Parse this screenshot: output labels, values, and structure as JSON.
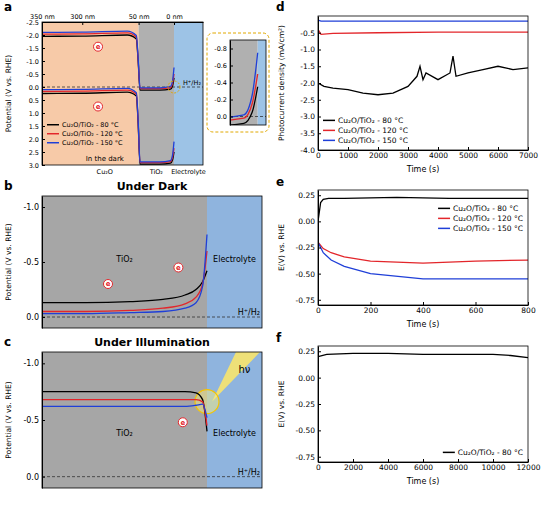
{
  "chart_data": [
    {
      "type": "line",
      "panel_label": "a",
      "y_label": "Potential (V vs. RHE)",
      "xlim": [
        350,
        -20
      ],
      "xticks": [
        {
          "value": 350,
          "label": "350 nm"
        },
        {
          "value": 300,
          "label": "300 nm"
        },
        {
          "value": 50,
          "label": "50 nm"
        },
        {
          "value": 0,
          "label": "0 nm"
        }
      ],
      "ylim": [
        3.0,
        -2.5
      ],
      "yticks": [
        -2.5,
        {
          "value": -2,
          "label": "-2.0"
        },
        -1.5,
        {
          "value": -1,
          "label": "-1.0"
        },
        -0.5,
        {
          "value": 0,
          "label": "0.0"
        },
        0.5,
        {
          "value": 1,
          "label": "1.0"
        },
        1.5,
        {
          "value": 2,
          "label": "2.0"
        },
        2.5,
        {
          "value": 3,
          "label": "3.0"
        }
      ],
      "x": [
        350,
        300,
        100,
        60,
        52,
        48,
        20,
        5,
        2,
        0
      ],
      "regions": [
        {
          "label": "Cu₂O",
          "from": 350,
          "to": 50,
          "color": "#f7caa8"
        },
        {
          "label": "TiO₂",
          "from": 50,
          "to": 0,
          "color": "#b0b0b0"
        },
        {
          "label": "Electrolyte",
          "from": 0,
          "to": -20,
          "color": "#9dc3e6"
        }
      ],
      "hlines": [
        {
          "y": 0,
          "label": "H⁺/H₂"
        }
      ],
      "annotations": [
        {
          "text": "e",
          "x": 230,
          "y": -1.55,
          "marker": "circle"
        },
        {
          "text": "e",
          "x": 230,
          "y": 0.75,
          "marker": "circle"
        },
        {
          "text": "In the dark",
          "x": 200,
          "y": 2.75
        }
      ],
      "legend": "lower left",
      "series": [
        {
          "name": "Cu₂O/TiO₂ - 80 °C",
          "color": "#000000",
          "values": [
            -1.95,
            -1.96,
            -2.0,
            -1.85,
            -1.0,
            0.12,
            0.12,
            0.08,
            -0.05,
            -0.35
          ],
          "values_vb": [
            0.25,
            0.24,
            0.2,
            0.35,
            1.4,
            2.97,
            2.97,
            2.93,
            2.8,
            2.5
          ]
        },
        {
          "name": "Cu₂O/TiO₂ - 120 °C",
          "color": "#e3262b",
          "values": [
            -2.03,
            -2.04,
            -2.08,
            -1.92,
            -1.05,
            0.06,
            0.06,
            0.02,
            -0.15,
            -0.5
          ],
          "values_vb": [
            0.17,
            0.16,
            0.12,
            0.28,
            1.35,
            2.91,
            2.91,
            2.87,
            2.7,
            2.35
          ]
        },
        {
          "name": "Cu₂O/TiO₂ - 150 °C",
          "color": "#1f3fd8",
          "values": [
            -2.1,
            -2.11,
            -2.15,
            -1.98,
            -1.1,
            0.03,
            0.03,
            -0.02,
            -0.25,
            -0.75
          ],
          "values_vb": [
            0.1,
            0.09,
            0.05,
            0.22,
            1.3,
            2.88,
            2.88,
            2.83,
            2.6,
            2.1
          ]
        }
      ],
      "inset": {
        "xlim": [
          10,
          -3
        ],
        "ylim": [
          0.1,
          -0.9
        ],
        "yticks": [
          -0.8,
          -0.6,
          -0.4,
          -0.2,
          {
            "value": 0,
            "label": "0.0"
          }
        ],
        "tick_labels": "y"
      }
    },
    {
      "type": "line",
      "panel_label": "b",
      "title": "Under Dark",
      "y_label": "Potential (V vs. RHE)",
      "tick_labels": "y",
      "xlim": [
        0,
        100
      ],
      "ylim": [
        0.1,
        -1.1
      ],
      "yticks": [
        {
          "value": -1,
          "label": "-1.0"
        },
        -0.5,
        {
          "value": 0,
          "label": "0.0"
        }
      ],
      "x": [
        0,
        20,
        40,
        55,
        65,
        70,
        73,
        75
      ],
      "regions": [
        {
          "label": "TiO₂",
          "from": 0,
          "to": 75,
          "color": "#a6a6a6"
        },
        {
          "label": "Electrolyte",
          "from": 75,
          "to": 100,
          "color": "#8fb4de"
        }
      ],
      "hlines": [
        {
          "y": 0,
          "label": "H⁺/H₂"
        }
      ],
      "annotations": [
        {
          "text": "e",
          "x": 30,
          "y": -0.3,
          "marker": "circle"
        },
        {
          "text": "e",
          "x": 62,
          "y": -0.45,
          "marker": "circle"
        }
      ],
      "series": [
        {
          "color": "#000000",
          "values": [
            -0.13,
            -0.13,
            -0.14,
            -0.16,
            -0.2,
            -0.25,
            -0.32,
            -0.42
          ]
        },
        {
          "color": "#e3262b",
          "values": [
            -0.05,
            -0.05,
            -0.06,
            -0.08,
            -0.12,
            -0.18,
            -0.3,
            -0.6
          ]
        },
        {
          "color": "#1f3fd8",
          "values": [
            -0.03,
            -0.03,
            -0.04,
            -0.05,
            -0.08,
            -0.13,
            -0.28,
            -0.75
          ]
        }
      ]
    },
    {
      "type": "line",
      "panel_label": "c",
      "title": "Under Illumination",
      "y_label": "Potential (V vs. RHE)",
      "tick_labels": "y",
      "xlim": [
        0,
        100
      ],
      "ylim": [
        0.1,
        -1.1
      ],
      "yticks": [
        {
          "value": -1,
          "label": "-1.0"
        },
        -0.5,
        {
          "value": 0,
          "label": "0.0"
        }
      ],
      "x": [
        0,
        20,
        40,
        55,
        65,
        70,
        73,
        75
      ],
      "regions": [
        {
          "label": "TiO₂",
          "from": 0,
          "to": 75,
          "color": "#a6a6a6"
        },
        {
          "label": "Electrolyte",
          "from": 75,
          "to": 100,
          "color": "#8fb4de"
        }
      ],
      "hlines": [
        {
          "y": 0,
          "label": "H⁺/H₂"
        }
      ],
      "annotations": [
        {
          "text": "e",
          "x": 64,
          "y": -0.48,
          "marker": "circle"
        },
        {
          "text": "hν",
          "x": 92,
          "y": -0.95
        }
      ],
      "series": [
        {
          "color": "#000000",
          "values": [
            -0.75,
            -0.75,
            -0.75,
            -0.75,
            -0.75,
            -0.74,
            -0.68,
            -0.4
          ]
        },
        {
          "color": "#e3262b",
          "values": [
            -0.68,
            -0.68,
            -0.68,
            -0.68,
            -0.68,
            -0.68,
            -0.66,
            -0.45
          ]
        },
        {
          "color": "#1f3fd8",
          "values": [
            -0.62,
            -0.62,
            -0.62,
            -0.62,
            -0.62,
            -0.63,
            -0.64,
            -0.52
          ]
        }
      ]
    },
    {
      "type": "line",
      "panel_label": "d",
      "x_label": "Time (s)",
      "y_label": "Photocurrent density (mA/cm²)",
      "xlim": [
        0,
        7000
      ],
      "xticks": [
        0,
        1000,
        2000,
        3000,
        4000,
        5000,
        6000,
        7000
      ],
      "ylim": [
        -4.0,
        0.0
      ],
      "yticks": [
        -0.5,
        {
          "value": -1,
          "label": "-1.0"
        },
        -1.5,
        {
          "value": -2,
          "label": "-2.0"
        },
        -2.5,
        {
          "value": -3,
          "label": "-3.0"
        },
        -3.5,
        {
          "value": -4,
          "label": "-4.0"
        }
      ],
      "legend": "lower left",
      "series": [
        {
          "name": "Cu₂O/TiO₂ - 80 °C",
          "color": "#000000",
          "x": [
            0,
            200,
            500,
            1000,
            1500,
            2000,
            2500,
            3000,
            3300,
            3400,
            3500,
            3600,
            4000,
            4400,
            4500,
            4600,
            5000,
            5500,
            6000,
            6500,
            7000
          ],
          "values": [
            -2.0,
            -2.1,
            -2.15,
            -2.2,
            -2.3,
            -2.35,
            -2.3,
            -2.1,
            -1.8,
            -1.5,
            -1.9,
            -1.7,
            -1.9,
            -1.7,
            -1.2,
            -1.8,
            -1.7,
            -1.6,
            -1.5,
            -1.6,
            -1.55
          ]
        },
        {
          "name": "Cu₂O/TiO₂ - 120 °C",
          "color": "#e3262b",
          "x": [
            0,
            100,
            500,
            2000,
            4000,
            7000
          ],
          "values": [
            -0.4,
            -0.55,
            -0.52,
            -0.5,
            -0.48,
            -0.48
          ]
        },
        {
          "name": "Cu₂O/TiO₂ - 150 °C",
          "color": "#1f3fd8",
          "x": [
            0,
            100,
            500,
            2000,
            4000,
            7000
          ],
          "values": [
            -0.12,
            -0.15,
            -0.15,
            -0.15,
            -0.15,
            -0.15
          ]
        }
      ]
    },
    {
      "type": "line",
      "panel_label": "e",
      "x_label": "Time (s)",
      "y_label": "E(V) vs. RHE",
      "xlim": [
        0,
        800
      ],
      "xticks": [
        0,
        200,
        400,
        600,
        800
      ],
      "ylim": [
        -0.8,
        0.3
      ],
      "yticks": [
        0.25,
        {
          "value": 0,
          "label": "0.00"
        },
        -0.25,
        {
          "value": -0.5,
          "label": "-0.50"
        },
        -0.75
      ],
      "legend": "upper right",
      "series": [
        {
          "name": "Cu₂O/TiO₂ - 80 °C",
          "color": "#000000",
          "x": [
            0,
            10,
            20,
            40,
            100,
            300,
            500,
            800
          ],
          "values": [
            0.0,
            0.18,
            0.21,
            0.22,
            0.22,
            0.23,
            0.22,
            0.22
          ]
        },
        {
          "name": "Cu₂O/TiO₂ - 120 °C",
          "color": "#e3262b",
          "x": [
            0,
            20,
            50,
            100,
            200,
            400,
            600,
            800
          ],
          "values": [
            -0.2,
            -0.26,
            -0.3,
            -0.34,
            -0.38,
            -0.4,
            -0.38,
            -0.37
          ]
        },
        {
          "name": "Cu₂O/TiO₂ - 150 °C",
          "color": "#1f3fd8",
          "x": [
            0,
            20,
            50,
            100,
            200,
            400,
            600,
            800
          ],
          "values": [
            -0.2,
            -0.3,
            -0.37,
            -0.43,
            -0.5,
            -0.55,
            -0.55,
            -0.55
          ]
        }
      ]
    },
    {
      "type": "line",
      "panel_label": "f",
      "x_label": "Time (s)",
      "y_label": "E(V) vs. RHE",
      "xlim": [
        0,
        12000
      ],
      "xticks": [
        0,
        2000,
        4000,
        6000,
        8000,
        10000,
        12000
      ],
      "ylim": [
        -0.8,
        0.3
      ],
      "yticks": [
        0.25,
        {
          "value": 0,
          "label": "0.00"
        },
        -0.25,
        {
          "value": -0.5,
          "label": "-0.50"
        },
        -0.75
      ],
      "legend": "lower right",
      "series": [
        {
          "name": "Cu₂O/TiO₂ - 80 °C",
          "color": "#000000",
          "x": [
            0,
            500,
            2000,
            4000,
            6000,
            8000,
            10000,
            11000,
            12000
          ],
          "values": [
            0.2,
            0.22,
            0.23,
            0.23,
            0.22,
            0.22,
            0.22,
            0.21,
            0.19
          ]
        }
      ]
    }
  ]
}
